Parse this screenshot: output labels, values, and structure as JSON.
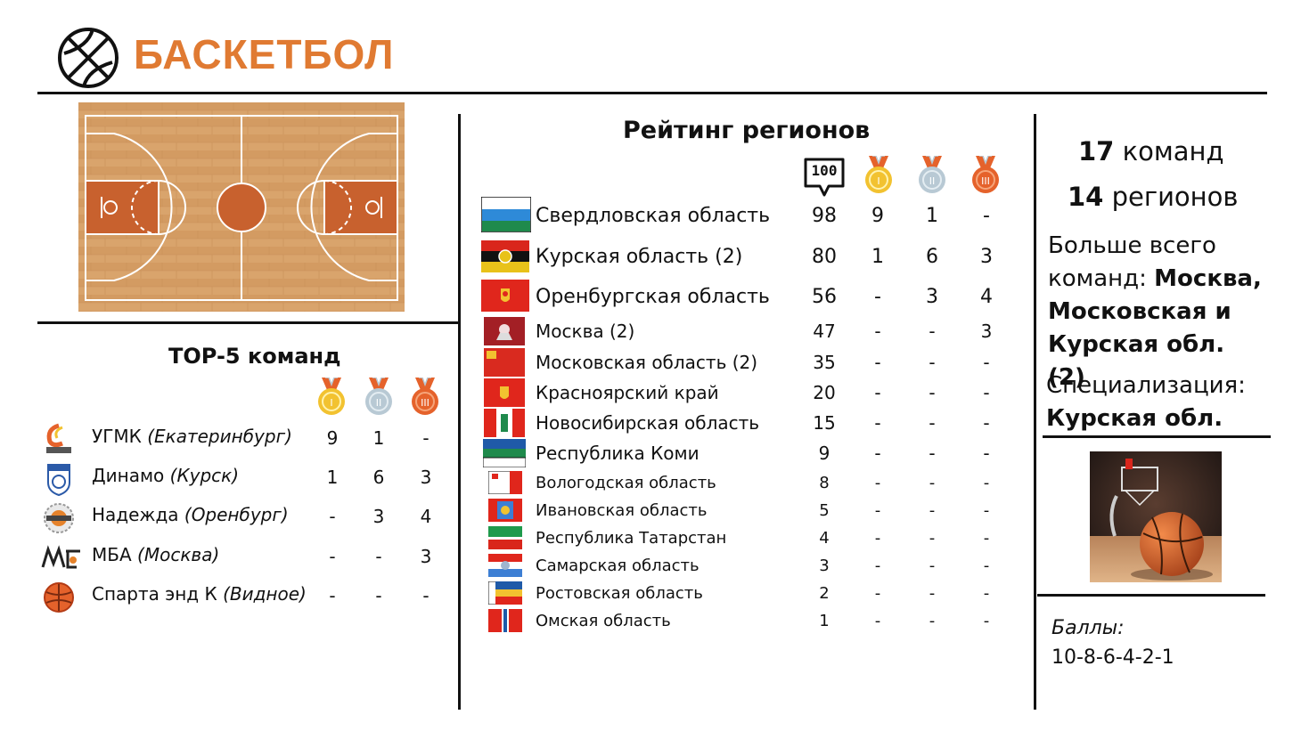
{
  "header": {
    "title": "БАСКЕТБОЛ",
    "icon": "basketball-icon"
  },
  "top5": {
    "title": "TOP-5 команд",
    "medals": [
      "gold-medal-icon",
      "silver-medal-icon",
      "bronze-medal-icon"
    ],
    "teams": [
      {
        "name": "УГМК",
        "city": "(Екатеринбург)",
        "gold": "9",
        "silver": "1",
        "bronze": "-"
      },
      {
        "name": "Динамо",
        "city": "(Курск)",
        "gold": "1",
        "silver": "6",
        "bronze": "3"
      },
      {
        "name": "Надежда",
        "city": "(Оренбург)",
        "gold": "-",
        "silver": "3",
        "bronze": "4"
      },
      {
        "name": "МБА",
        "city": "(Москва)",
        "gold": "-",
        "silver": "-",
        "bronze": "3"
      },
      {
        "name": "Спарта энд К",
        "city": "(Видное)",
        "gold": "-",
        "silver": "-",
        "bronze": "-"
      }
    ]
  },
  "regions": {
    "title": "Рейтинг регионов",
    "score_badge": "100",
    "rows": [
      {
        "name": "Свердловская область",
        "score": "98",
        "gold": "9",
        "silver": "1",
        "bronze": "-"
      },
      {
        "name": "Курская область (2)",
        "score": "80",
        "gold": "1",
        "silver": "6",
        "bronze": "3"
      },
      {
        "name": "Оренбургская область",
        "score": "56",
        "gold": "-",
        "silver": "3",
        "bronze": "4"
      },
      {
        "name": "Москва (2)",
        "score": "47",
        "gold": "-",
        "silver": "-",
        "bronze": "3"
      },
      {
        "name": "Московская область (2)",
        "score": "35",
        "gold": "-",
        "silver": "-",
        "bronze": "-"
      },
      {
        "name": "Красноярский край",
        "score": "20",
        "gold": "-",
        "silver": "-",
        "bronze": "-"
      },
      {
        "name": "Новосибирская область",
        "score": "15",
        "gold": "-",
        "silver": "-",
        "bronze": "-"
      },
      {
        "name": "Республика Коми",
        "score": "9",
        "gold": "-",
        "silver": "-",
        "bronze": "-"
      },
      {
        "name": "Вологодская область",
        "score": "8",
        "gold": "-",
        "silver": "-",
        "bronze": "-"
      },
      {
        "name": "Ивановская область",
        "score": "5",
        "gold": "-",
        "silver": "-",
        "bronze": "-"
      },
      {
        "name": "Республика Татарстан",
        "score": "4",
        "gold": "-",
        "silver": "-",
        "bronze": "-"
      },
      {
        "name": "Самарская область",
        "score": "3",
        "gold": "-",
        "silver": "-",
        "bronze": "-"
      },
      {
        "name": "Ростовская область",
        "score": "2",
        "gold": "-",
        "silver": "-",
        "bronze": "-"
      },
      {
        "name": "Омская область",
        "score": "1",
        "gold": "-",
        "silver": "-",
        "bronze": "-"
      }
    ]
  },
  "summary": {
    "teams_num": "17",
    "teams_word": "команд",
    "regions_num": "14",
    "regions_word": "регионов",
    "most_prefix_1": "Больше всего",
    "most_prefix_2": "команд: ",
    "most_bold_1": "Москва,",
    "most_bold_2": "Московская и",
    "most_bold_3": "Курская обл. (2)",
    "spec_label": "Специализация:",
    "spec_value": "Курская обл.",
    "points_label": "Баллы:",
    "points_value": "10-8-6-4-2-1"
  },
  "colors": {
    "accent": "#e07a32",
    "gold": "#f2c230",
    "silver": "#b8c9d4",
    "bronze": "#e5622b",
    "court": "#d9a46c"
  }
}
